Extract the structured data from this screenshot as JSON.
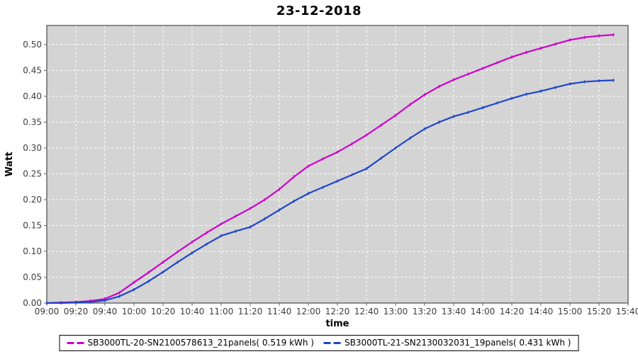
{
  "title": "23-12-2018",
  "colors": {
    "series1": "#cc00cc",
    "series2": "#1e46c8",
    "plot_background": "#d4d4d4",
    "gridline": "#ffffff",
    "plot_border": "#5f5f5f",
    "tick_mark": "#666666",
    "tick_label": "#3d3d3d",
    "axis_label": "#000000",
    "outer_background": "#ffffff"
  },
  "chart_data": {
    "type": "line",
    "title": "23-12-2018",
    "xlabel": "time",
    "ylabel": "Watt",
    "grid": true,
    "legend_position": "bottom",
    "x_ticks": [
      "09:00",
      "09:20",
      "09:40",
      "10:00",
      "10:20",
      "10:40",
      "11:00",
      "11:20",
      "11:40",
      "12:00",
      "12:20",
      "12:40",
      "13:00",
      "13:20",
      "13:40",
      "14:00",
      "14:20",
      "14:40",
      "15:00",
      "15:20",
      "15:40"
    ],
    "y_ticks": [
      "0.00",
      "0.05",
      "0.10",
      "0.15",
      "0.20",
      "0.25",
      "0.30",
      "0.35",
      "0.40",
      "0.45",
      "0.50"
    ],
    "xlim": [
      "09:00",
      "15:40"
    ],
    "ylim": [
      0.0,
      0.537
    ],
    "x": [
      "09:00",
      "09:10",
      "09:20",
      "09:30",
      "09:40",
      "09:50",
      "10:00",
      "10:10",
      "10:20",
      "10:30",
      "10:40",
      "10:50",
      "11:00",
      "11:10",
      "11:20",
      "11:30",
      "11:40",
      "11:50",
      "12:00",
      "12:10",
      "12:20",
      "12:30",
      "12:40",
      "12:50",
      "13:00",
      "13:10",
      "13:20",
      "13:30",
      "13:40",
      "13:50",
      "14:00",
      "14:10",
      "14:20",
      "14:30",
      "14:40",
      "14:50",
      "15:00",
      "15:10",
      "15:20",
      "15:30"
    ],
    "series": [
      {
        "name": "SB3000TL-20-SN2100578613_21panels( 0.519 kWh )",
        "color": "#cc00cc",
        "total_kwh": 0.519,
        "values": [
          0.0,
          0.001,
          0.002,
          0.004,
          0.008,
          0.02,
          0.04,
          0.059,
          0.079,
          0.099,
          0.118,
          0.136,
          0.153,
          0.168,
          0.183,
          0.2,
          0.22,
          0.244,
          0.265,
          0.279,
          0.292,
          0.308,
          0.325,
          0.344,
          0.363,
          0.384,
          0.403,
          0.419,
          0.432,
          0.443,
          0.454,
          0.465,
          0.476,
          0.485,
          0.493,
          0.501,
          0.509,
          0.514,
          0.517,
          0.519
        ]
      },
      {
        "name": "SB3000TL-21-SN2130032031_19panels( 0.431 kWh )",
        "color": "#1e46c8",
        "total_kwh": 0.431,
        "values": [
          0.0,
          0.0,
          0.001,
          0.002,
          0.005,
          0.013,
          0.026,
          0.042,
          0.06,
          0.079,
          0.097,
          0.114,
          0.13,
          0.139,
          0.147,
          0.163,
          0.18,
          0.197,
          0.212,
          0.224,
          0.236,
          0.248,
          0.26,
          0.28,
          0.3,
          0.319,
          0.337,
          0.35,
          0.361,
          0.369,
          0.378,
          0.387,
          0.396,
          0.404,
          0.41,
          0.417,
          0.424,
          0.428,
          0.43,
          0.431
        ]
      }
    ]
  }
}
